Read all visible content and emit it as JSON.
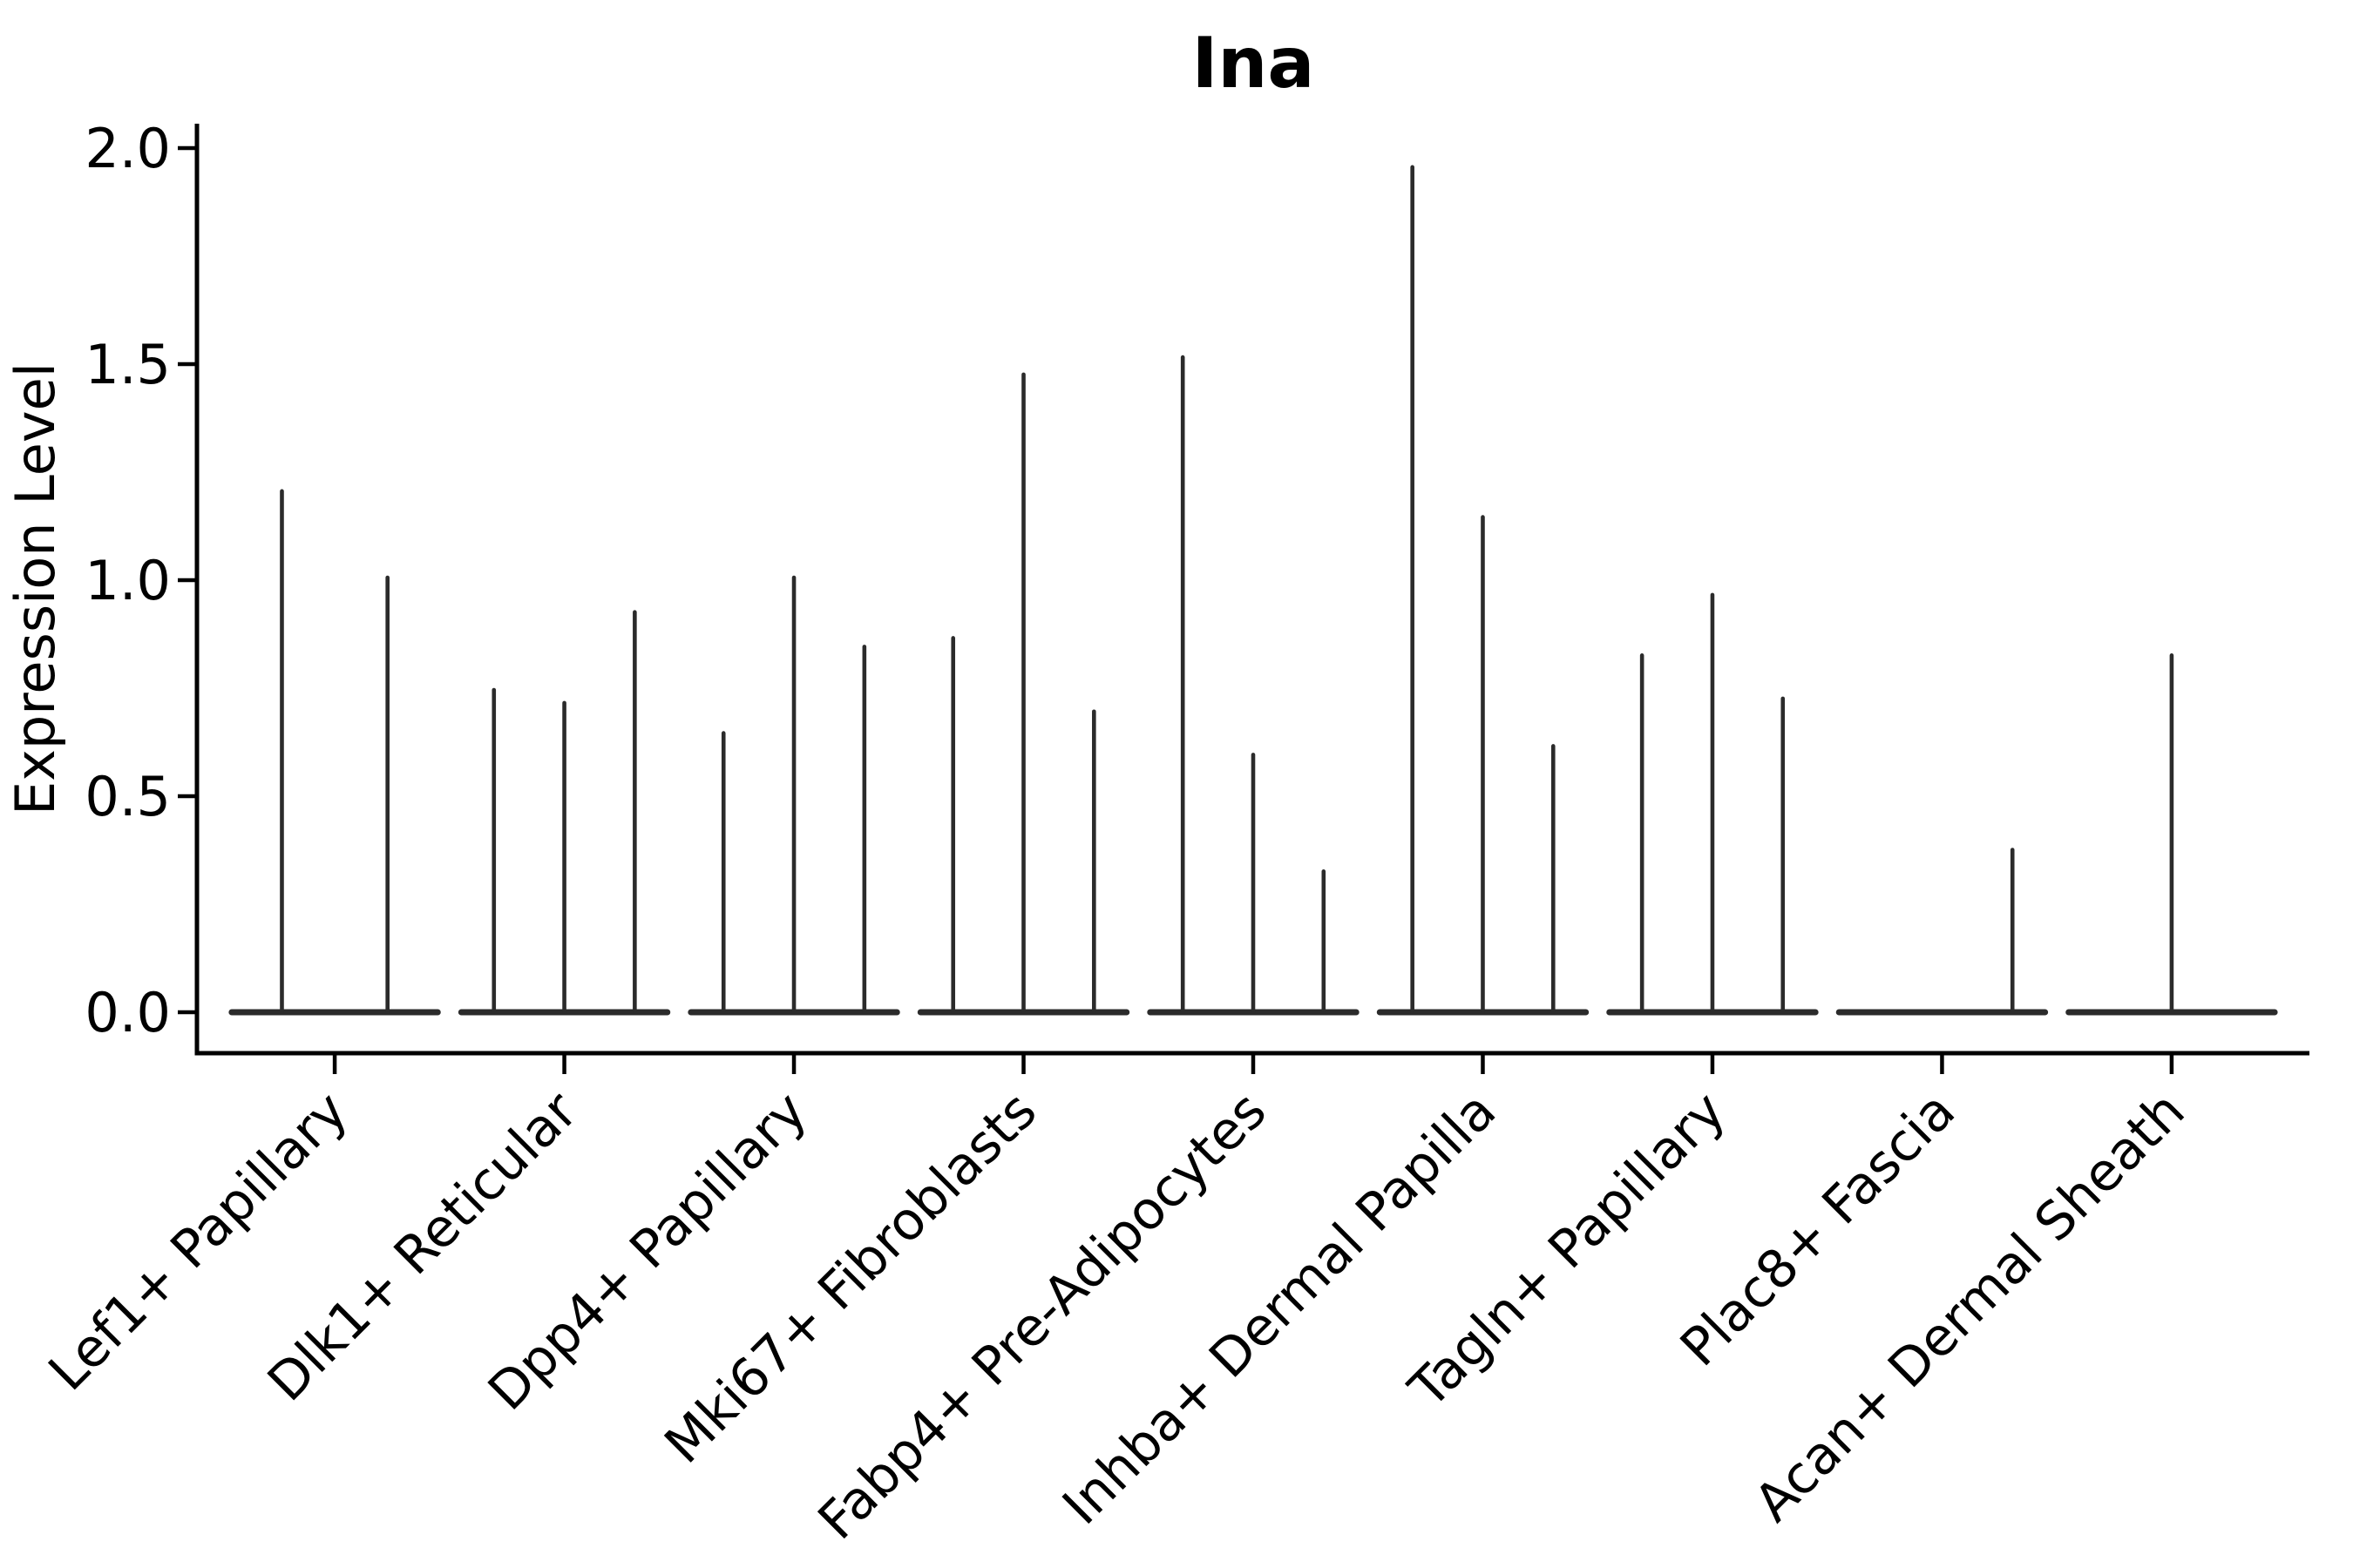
{
  "figure": {
    "title": "Ina",
    "ylabel": "Expression Level"
  },
  "chart_data": {
    "type": "violin",
    "title": "Ina",
    "xlabel": "",
    "ylabel": "Expression Level",
    "ylim": [
      -0.1,
      2.06
    ],
    "yticks": [
      "0.0",
      "0.5",
      "1.0",
      "1.5",
      "2.0"
    ],
    "ytick_values": [
      0.0,
      0.5,
      1.0,
      1.5,
      2.0
    ],
    "grid": false,
    "legend_position": "none",
    "violin_line_color": "#2b2b2b",
    "axis_color": "#000000",
    "categories": [
      "Lef1+ Papillary",
      "Dlk1+ Reticular",
      "Dpp4+ Papillary",
      "Mki67+ Fibroblasts",
      "Fabp4+ Pre-Adipocytes",
      "Inhba+ Dermal Papilla",
      "Tagln+ Papillary",
      "Plac8+ Fascia",
      "Acan+ Dermal Sheath"
    ],
    "groups": [
      {
        "category": "Lef1+ Papillary",
        "violin_peaks": [
          1.21,
          1.01
        ]
      },
      {
        "category": "Dlk1+ Reticular",
        "violin_peaks": [
          0.75,
          0.72,
          0.93
        ]
      },
      {
        "category": "Dpp4+ Papillary",
        "violin_peaks": [
          0.65,
          1.01,
          0.85
        ]
      },
      {
        "category": "Mki67+ Fibroblasts",
        "violin_peaks": [
          0.87,
          1.48,
          0.7
        ]
      },
      {
        "category": "Fabp4+ Pre-Adipocytes",
        "violin_peaks": [
          1.52,
          0.6,
          0.33
        ]
      },
      {
        "category": "Inhba+ Dermal Papilla",
        "violin_peaks": [
          1.96,
          1.15,
          0.62
        ]
      },
      {
        "category": "Tagln+ Papillary",
        "violin_peaks": [
          0.83,
          0.97,
          0.73
        ]
      },
      {
        "category": "Plac8+ Fascia",
        "violin_peaks": [
          0,
          0,
          0.38
        ]
      },
      {
        "category": "Acan+ Dermal Sheath",
        "violin_peaks": [
          0,
          0.83,
          0
        ]
      }
    ],
    "description": "Violin plot of Ina expression per fibroblast subtype; expression is concentrated at 0 so each violin renders as a flat baseline with a thin spike up to its maximum value."
  }
}
